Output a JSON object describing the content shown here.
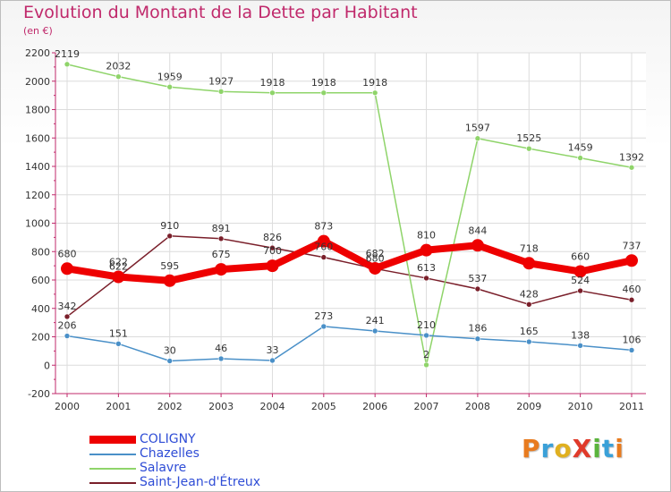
{
  "title": "Evolution du Montant de la Dette par Habitant",
  "subtitle": "(en €)",
  "logo": {
    "text": "ProXiti",
    "colors": [
      "#e87b1f",
      "#3aa0d8",
      "#e0b020",
      "#e03a2a",
      "#5ab43c",
      "#3aa0d8",
      "#e87b1f"
    ]
  },
  "chart_data": {
    "type": "line",
    "categories": [
      "2000",
      "2001",
      "2002",
      "2003",
      "2004",
      "2005",
      "2006",
      "2007",
      "2008",
      "2009",
      "2010",
      "2011"
    ],
    "ylim": [
      -200,
      2200
    ],
    "yticks": [
      -200,
      0,
      200,
      400,
      600,
      800,
      1000,
      1200,
      1400,
      1600,
      1800,
      2000,
      2200
    ],
    "grid": true,
    "series": [
      {
        "name": "Saint-Jean-d'Étreux",
        "color": "#7a1f2a",
        "values": [
          342,
          622,
          910,
          891,
          826,
          760,
          680,
          613,
          537,
          428,
          524,
          460
        ],
        "labels": [
          "342",
          "622",
          "910",
          "891",
          "826",
          "760",
          "680",
          "613",
          "537",
          "428",
          "524",
          "460"
        ]
      },
      {
        "name": "Salavre",
        "color": "#8fd46a",
        "values": [
          2119,
          2032,
          1959,
          1927,
          1918,
          1918,
          1918,
          2,
          1597,
          1525,
          1459,
          1392
        ],
        "labels": [
          "2119",
          "2032",
          "1959",
          "1927",
          "1918",
          "1918",
          "1918",
          "2",
          "1597",
          "1525",
          "1459",
          "1392"
        ]
      },
      {
        "name": "Chazelles",
        "color": "#4a90c8",
        "values": [
          206,
          151,
          30,
          46,
          33,
          273,
          241,
          210,
          186,
          165,
          138,
          106
        ],
        "labels": [
          "206",
          "151",
          "30",
          "46",
          "33",
          "273",
          "241",
          "210",
          "186",
          "165",
          "138",
          "106"
        ]
      },
      {
        "name": "COLIGNY",
        "color": "#ee0000",
        "values": [
          680,
          622,
          595,
          675,
          700,
          873,
          682,
          810,
          844,
          718,
          660,
          737
        ],
        "labels": [
          "680",
          "622",
          "595",
          "675",
          "700",
          "873",
          "682",
          "810",
          "844",
          "718",
          "660",
          "737"
        ]
      }
    ],
    "legend": [
      "COLIGNY",
      "Chazelles",
      "Salavre",
      "Saint-Jean-d'Étreux"
    ],
    "legend_position": "bottom-left"
  }
}
